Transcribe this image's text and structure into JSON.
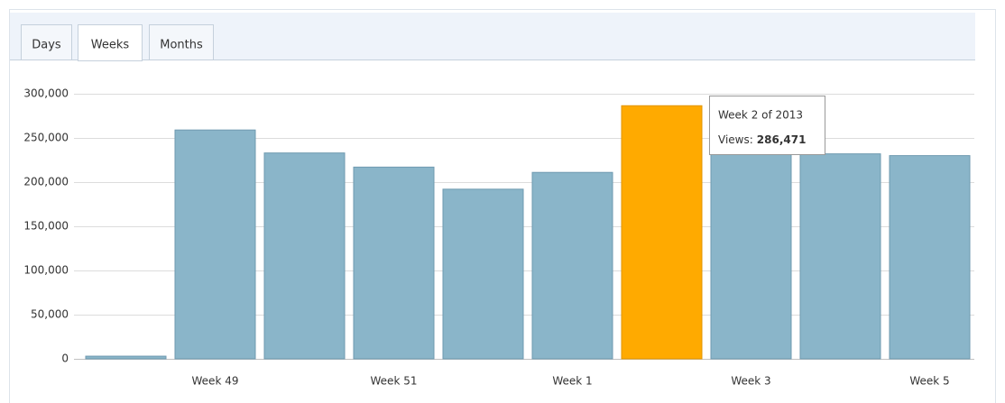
{
  "tabs": [
    {
      "label": "Days",
      "active": false
    },
    {
      "label": "Weeks",
      "active": true
    },
    {
      "label": "Months",
      "active": false
    }
  ],
  "chart_data": {
    "type": "bar",
    "categories": [
      null,
      "Week 49",
      null,
      "Week 51",
      null,
      "Week 1",
      null,
      "Week 3",
      null,
      "Week 5"
    ],
    "values": [
      3000,
      259000,
      233000,
      217000,
      192000,
      211000,
      286471,
      232000,
      232000,
      230000
    ],
    "value_labels": [
      null,
      null,
      null,
      null,
      null,
      null,
      "286,471",
      null,
      null,
      null
    ],
    "color": "#8ab5c9",
    "highlight_color": "#ffaa00",
    "tooltip": {
      "title": "Week 2 of 2013",
      "label": "Views:"
    },
    "ylim": [
      0,
      300000
    ],
    "yticks": [
      0,
      {
        "value": 50000,
        "label": "50,000"
      },
      {
        "value": 100000,
        "label": "100,000"
      },
      {
        "value": 150000,
        "label": "150,000"
      },
      {
        "value": 200000,
        "label": "200,000"
      },
      {
        "value": 250000,
        "label": "250,000"
      },
      {
        "value": 300000,
        "label": "300,000"
      }
    ],
    "grid": true
  }
}
